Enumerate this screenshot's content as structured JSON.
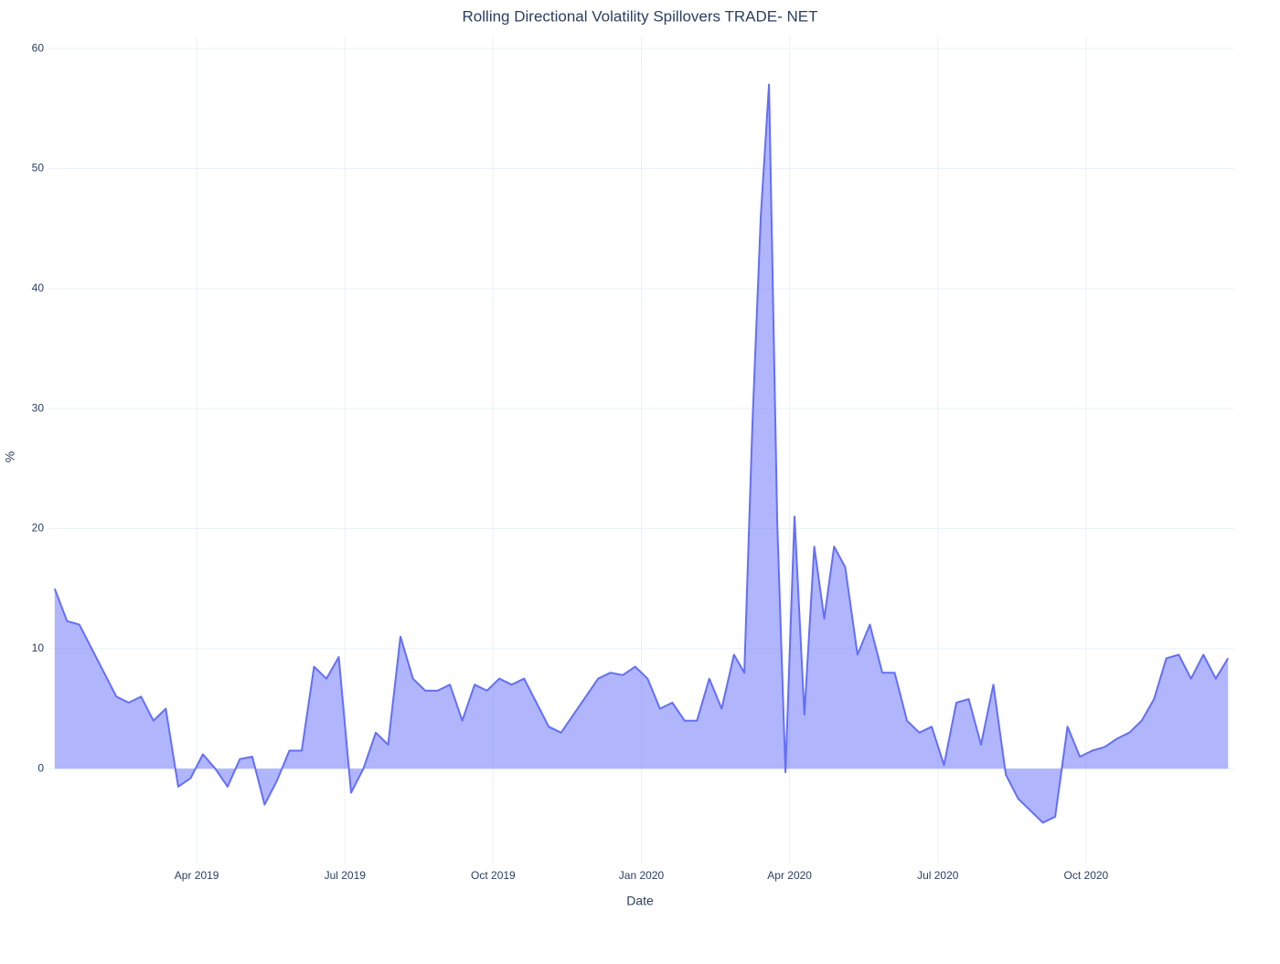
{
  "chart_data": {
    "type": "area",
    "title": "Rolling Directional Volatility Spillovers TRADE- NET",
    "xlabel": "Date",
    "ylabel": "%",
    "color": "#636efa",
    "fill": "rgba(99,110,250,0.5)",
    "grid": true,
    "xlim": [
      "2019-01",
      "2020-12"
    ],
    "ylim": [
      -7.9,
      61
    ],
    "yticks": [
      0,
      10,
      20,
      30,
      40,
      50,
      60
    ],
    "xticks": [
      {
        "value": "2019-04",
        "label": "Apr 2019"
      },
      {
        "value": "2019-07",
        "label": "Jul 2019"
      },
      {
        "value": "2019-10",
        "label": "Oct 2019"
      },
      {
        "value": "2020-01",
        "label": "Jan 2020"
      },
      {
        "value": "2020-04",
        "label": "Apr 2020"
      },
      {
        "value": "2020-07",
        "label": "Jul 2020"
      },
      {
        "value": "2020-10",
        "label": "Oct 2020"
      }
    ],
    "x": [
      "2019-01",
      "2019-01",
      "2019-01",
      "2019-01",
      "2019-02",
      "2019-02",
      "2019-02",
      "2019-02",
      "2019-03",
      "2019-03",
      "2019-03",
      "2019-03",
      "2019-04",
      "2019-04",
      "2019-04",
      "2019-04",
      "2019-05",
      "2019-05",
      "2019-05",
      "2019-05",
      "2019-06",
      "2019-06",
      "2019-06",
      "2019-06",
      "2019-07",
      "2019-07",
      "2019-07",
      "2019-07",
      "2019-08",
      "2019-08",
      "2019-08",
      "2019-08",
      "2019-09",
      "2019-09",
      "2019-09",
      "2019-09",
      "2019-10",
      "2019-10",
      "2019-10",
      "2019-10",
      "2019-11",
      "2019-11",
      "2019-11",
      "2019-11",
      "2019-12",
      "2019-12",
      "2019-12",
      "2019-12",
      "2020-01",
      "2020-01",
      "2020-01",
      "2020-01",
      "2020-02",
      "2020-02",
      "2020-02",
      "2020-02",
      "2020-03",
      "2020-03",
      "2020-03",
      "2020-03",
      "2020-03",
      "2020-03",
      "2020-04",
      "2020-04",
      "2020-04",
      "2020-04",
      "2020-04",
      "2020-05",
      "2020-05",
      "2020-05",
      "2020-05",
      "2020-06",
      "2020-06",
      "2020-06",
      "2020-06",
      "2020-07",
      "2020-07",
      "2020-07",
      "2020-07",
      "2020-08",
      "2020-08",
      "2020-08",
      "2020-08",
      "2020-09",
      "2020-09",
      "2020-09",
      "2020-09",
      "2020-10",
      "2020-10",
      "2020-10",
      "2020-10",
      "2020-11",
      "2020-11",
      "2020-11",
      "2020-11",
      "2020-12",
      "2020-12",
      "2020-12",
      "2020-12"
    ],
    "values": [
      15,
      12.3,
      12,
      10,
      8,
      6,
      5.5,
      6,
      4,
      5,
      -1.5,
      -0.8,
      1.2,
      0,
      -1.5,
      0.8,
      1,
      -3,
      -1,
      1.5,
      1.5,
      8.5,
      7.5,
      9.3,
      -2,
      0,
      3,
      2,
      11,
      7.5,
      6.5,
      6.5,
      7,
      4,
      7,
      6.5,
      7.5,
      7,
      7.5,
      5.5,
      3.5,
      3,
      4.5,
      6,
      7.5,
      8,
      7.8,
      8.5,
      7.5,
      5,
      5.5,
      4,
      4,
      7.5,
      5,
      9.5,
      8,
      29,
      46,
      57,
      20.5,
      -0.3,
      21,
      4.5,
      18.5,
      12.5,
      18.5,
      16.8,
      9.5,
      12,
      8,
      8,
      4,
      3,
      3.5,
      0.3,
      5.5,
      5.8,
      2,
      7,
      -0.5,
      -2.5,
      -3.5,
      -4.5,
      -4,
      3.5,
      1,
      1.5,
      1.8,
      2.5,
      3,
      4,
      5.8,
      9.2,
      9.5,
      7.5,
      9.5,
      7.5,
      9.2
    ]
  }
}
